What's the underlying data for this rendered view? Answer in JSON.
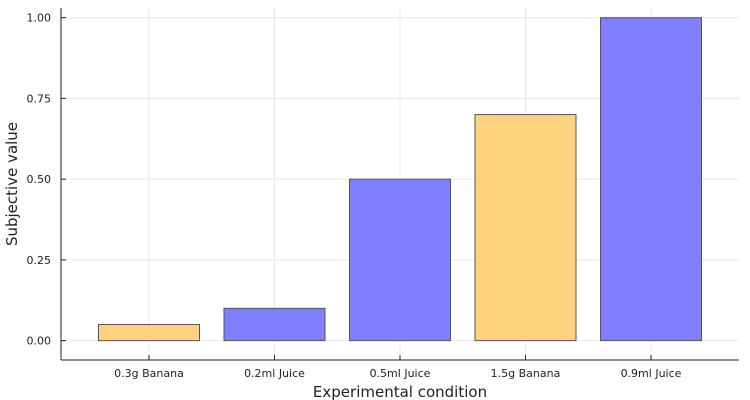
{
  "chart_data": {
    "type": "bar",
    "categories": [
      "0.3g Banana",
      "0.2ml Juice",
      "0.5ml Juice",
      "1.5g Banana",
      "0.9ml Juice"
    ],
    "values": [
      0.05,
      0.1,
      0.5,
      0.7,
      1.0
    ],
    "bar_colors": [
      "#ffd27f",
      "#7f7fff",
      "#7f7fff",
      "#ffd27f",
      "#7f7fff"
    ],
    "title": "",
    "xlabel": "Experimental condition",
    "ylabel": "Subjective value",
    "ylim": [
      -0.06,
      1.03
    ],
    "yticks": [
      0.0,
      0.25,
      0.5,
      0.75,
      1.0
    ],
    "ytick_labels": [
      "0.00",
      "0.25",
      "0.50",
      "0.75",
      "1.00"
    ],
    "grid": true,
    "legend": "none"
  }
}
